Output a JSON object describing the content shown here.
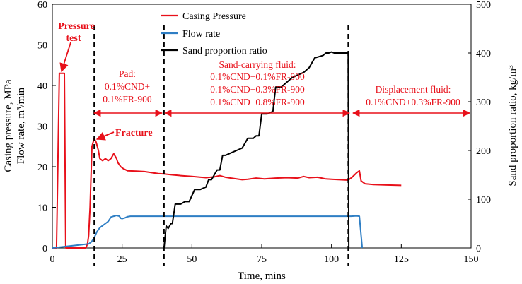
{
  "chart_data": {
    "type": "line",
    "xlabel": "Time, mins",
    "ylabel_left_line1": "Casing pressure, MPa",
    "ylabel_left_line2": "Flow rate, m³/min",
    "ylabel_right": "Sand proportion ratio, kg/m³",
    "xlim": [
      0,
      150
    ],
    "ylim_left": [
      0,
      60
    ],
    "ylim_right": [
      0,
      500
    ],
    "xticks": [
      0,
      25,
      50,
      75,
      100,
      125,
      150
    ],
    "yticks_left": [
      0,
      10,
      20,
      30,
      40,
      50,
      60
    ],
    "yticks_right": [
      0,
      100,
      200,
      300,
      400,
      500
    ],
    "legend_position": "top-center",
    "colors": {
      "pressure": "#e8101a",
      "flow": "#2e7ec4",
      "sand": "#000000",
      "annotation": "#e8101a"
    },
    "series": [
      {
        "name": "Casing Pressure",
        "axis": "left",
        "x": [
          0,
          1.5,
          2.5,
          3,
          4,
          4.3,
          4.8,
          12,
          12.6,
          13,
          13.5,
          14.2,
          15,
          15.7,
          16.5,
          17,
          18,
          19,
          20,
          21,
          22,
          23,
          23.5,
          24.5,
          25.5,
          27,
          30,
          33,
          36,
          38,
          40,
          43,
          46,
          50,
          55,
          58,
          60,
          62,
          64,
          66,
          68,
          70,
          73,
          76,
          80,
          84,
          88,
          90,
          92,
          95,
          98,
          100,
          103,
          106,
          107.5,
          109,
          110,
          110.6,
          112,
          115,
          120,
          125
        ],
        "values": [
          0,
          0,
          43,
          43,
          43,
          43,
          0,
          0,
          1,
          3,
          10,
          25,
          27,
          26,
          24,
          22,
          21.5,
          22,
          21.5,
          22,
          23.2,
          22,
          21,
          20,
          19.5,
          19,
          18.9,
          18.8,
          18.5,
          18.3,
          18.2,
          18,
          17.8,
          17.6,
          17.3,
          17.5,
          17.8,
          17.4,
          17.2,
          17.0,
          16.8,
          16.9,
          17.2,
          17.0,
          17.2,
          17.3,
          17.2,
          17.6,
          17.3,
          17.4,
          17.0,
          16.9,
          16.8,
          16.7,
          17.5,
          18.5,
          19,
          16.5,
          15.8,
          15.6,
          15.5,
          15.4
        ]
      },
      {
        "name": "Flow rate",
        "axis": "left",
        "x": [
          0,
          13,
          14,
          15,
          16,
          17,
          18,
          19,
          20,
          21,
          22,
          23,
          24,
          24.5,
          25,
          26,
          27,
          28,
          30,
          35,
          40,
          45,
          50,
          60,
          70,
          80,
          90,
          100,
          105,
          107,
          109,
          110,
          111
        ],
        "values": [
          0,
          1,
          1.5,
          2.5,
          4,
          5,
          5.5,
          6,
          6.5,
          7.6,
          7.8,
          8,
          7.8,
          7.3,
          7.2,
          7.4,
          7.7,
          7.8,
          7.8,
          7.8,
          7.8,
          7.8,
          7.8,
          7.8,
          7.8,
          7.8,
          7.8,
          7.8,
          7.8,
          7.8,
          7.9,
          7.8,
          0
        ]
      },
      {
        "name": "Sand proportion ratio",
        "axis": "right",
        "x": [
          40,
          40.8,
          41.5,
          42.5,
          43,
          44,
          45,
          46,
          47.5,
          49,
          51,
          53,
          55,
          56,
          57,
          59,
          60,
          61,
          62,
          64,
          66,
          68,
          70,
          72,
          73,
          74,
          75,
          77,
          79,
          80,
          81,
          82,
          84,
          86,
          88,
          90,
          92,
          94,
          97,
          98,
          99,
          100,
          101,
          103,
          105,
          106,
          106.2
        ],
        "values": [
          0,
          45,
          40,
          50,
          50,
          90,
          90,
          90,
          95,
          95,
          120,
          120,
          125,
          140,
          140,
          160,
          160,
          190,
          190,
          195,
          200,
          205,
          225,
          225,
          230,
          230,
          275,
          275,
          280,
          330,
          330,
          330,
          340,
          350,
          355,
          360,
          370,
          390,
          395,
          400,
          400,
          402,
          400,
          400,
          400,
          400,
          0
        ]
      }
    ],
    "stage_lines_x": [
      15,
      40,
      106
    ],
    "annotations": {
      "pressure_test_line1": "Pressure",
      "pressure_test_line2": "test",
      "fracture": "Fracture",
      "pad_title": "Pad:",
      "pad_line1": "0.1%CND+",
      "pad_line2": "0.1%FR-900",
      "sand_title": "Sand-carrying fluid:",
      "sand_line1": "0.1%CND+0.1%FR-900",
      "sand_line2": "0.1%CND+0.3%FR-900",
      "sand_line3": "0.1%CND+0.8%FR-900",
      "disp_title": "Displacement fluid:",
      "disp_line1": "0.1%CND+0.3%FR-900"
    }
  }
}
